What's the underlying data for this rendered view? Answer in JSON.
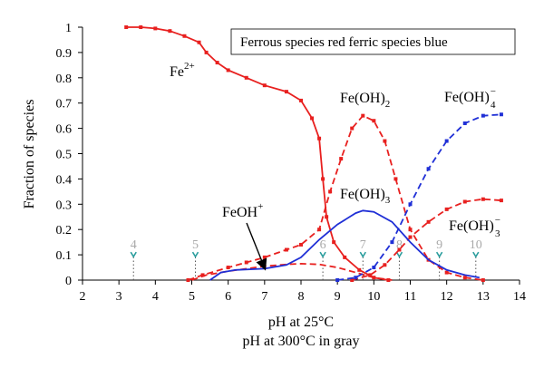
{
  "chart_data": {
    "type": "line",
    "title": "",
    "xlabel": "pH at 25°C",
    "xlabel2": "pH at 300°C in gray",
    "ylabel": "Fraction of species",
    "xlim": [
      2,
      14
    ],
    "ylim": [
      0,
      1
    ],
    "xticks": [
      "2",
      "3",
      "4",
      "5",
      "6",
      "7",
      "8",
      "9",
      "10",
      "11",
      "12",
      "13",
      "14"
    ],
    "yticks": [
      "0",
      "0.1",
      "0.2",
      "0.3",
      "0.4",
      "0.5",
      "0.6",
      "0.7",
      "0.8",
      "0.9",
      "1"
    ],
    "grid": false,
    "legend_note": "Ferrous species red ferric species blue",
    "colors": {
      "ferrous": "#e8201f",
      "ferric": "#1f2fd6",
      "gray_ph": "#a9a9a9"
    },
    "series": [
      {
        "name": "Fe2+",
        "color": "#e8201f",
        "style": "solid-with-markers",
        "points": [
          [
            3.2,
            1.0
          ],
          [
            3.6,
            1.0
          ],
          [
            4.0,
            0.995
          ],
          [
            4.4,
            0.985
          ],
          [
            4.8,
            0.965
          ],
          [
            5.2,
            0.94
          ],
          [
            5.4,
            0.9
          ],
          [
            5.7,
            0.86
          ],
          [
            6.0,
            0.83
          ],
          [
            6.5,
            0.8
          ],
          [
            7.0,
            0.77
          ],
          [
            7.6,
            0.745
          ],
          [
            8.0,
            0.71
          ],
          [
            8.3,
            0.64
          ],
          [
            8.5,
            0.56
          ],
          [
            8.6,
            0.4
          ],
          [
            8.7,
            0.25
          ],
          [
            8.9,
            0.15
          ],
          [
            9.2,
            0.09
          ],
          [
            9.6,
            0.04
          ],
          [
            10.0,
            0.01
          ],
          [
            10.4,
            0.0
          ]
        ]
      },
      {
        "name": "FeOH+",
        "color": "#e8201f",
        "style": "dashed",
        "points": [
          [
            5.0,
            0.0
          ],
          [
            5.4,
            0.02
          ],
          [
            6.0,
            0.035
          ],
          [
            6.5,
            0.045
          ],
          [
            7.0,
            0.055
          ],
          [
            7.6,
            0.062
          ],
          [
            8.0,
            0.065
          ],
          [
            8.5,
            0.062
          ],
          [
            9.0,
            0.05
          ],
          [
            9.5,
            0.03
          ],
          [
            10.0,
            0.01
          ],
          [
            10.5,
            0.0
          ]
        ]
      },
      {
        "name": "Fe(OH)2",
        "color": "#e8201f",
        "style": "dashed-with-markers",
        "points": [
          [
            4.9,
            0.0
          ],
          [
            5.3,
            0.02
          ],
          [
            6.0,
            0.05
          ],
          [
            6.5,
            0.07
          ],
          [
            7.0,
            0.09
          ],
          [
            7.6,
            0.12
          ],
          [
            8.0,
            0.14
          ],
          [
            8.5,
            0.2
          ],
          [
            8.8,
            0.35
          ],
          [
            9.1,
            0.48
          ],
          [
            9.4,
            0.6
          ],
          [
            9.7,
            0.65
          ],
          [
            10.0,
            0.63
          ],
          [
            10.3,
            0.55
          ],
          [
            10.6,
            0.4
          ],
          [
            11.0,
            0.2
          ],
          [
            11.5,
            0.08
          ],
          [
            12.0,
            0.03
          ],
          [
            12.5,
            0.01
          ],
          [
            13.0,
            0.0
          ]
        ]
      },
      {
        "name": "Fe(OH)3 ferrous",
        "color": "#e8201f",
        "style": "dashed-with-markers",
        "points": [
          [
            9.4,
            0.0
          ],
          [
            9.9,
            0.02
          ],
          [
            10.3,
            0.06
          ],
          [
            10.7,
            0.12
          ],
          [
            11.0,
            0.17
          ],
          [
            11.5,
            0.23
          ],
          [
            12.0,
            0.28
          ],
          [
            12.5,
            0.31
          ],
          [
            13.0,
            0.32
          ],
          [
            13.5,
            0.315
          ]
        ]
      },
      {
        "name": "Fe(OH)3 ferric",
        "color": "#1f2fd6",
        "style": "solid",
        "points": [
          [
            5.5,
            0.0
          ],
          [
            5.8,
            0.03
          ],
          [
            6.2,
            0.04
          ],
          [
            7.0,
            0.045
          ],
          [
            7.6,
            0.06
          ],
          [
            8.0,
            0.09
          ],
          [
            8.5,
            0.16
          ],
          [
            9.0,
            0.22
          ],
          [
            9.5,
            0.265
          ],
          [
            9.7,
            0.275
          ],
          [
            10.0,
            0.27
          ],
          [
            10.5,
            0.23
          ],
          [
            11.0,
            0.15
          ],
          [
            11.5,
            0.08
          ],
          [
            12.0,
            0.04
          ],
          [
            12.5,
            0.02
          ],
          [
            12.9,
            0.01
          ]
        ]
      },
      {
        "name": "Fe(OH)4-",
        "color": "#1f2fd6",
        "style": "dashed-with-markers",
        "points": [
          [
            9.0,
            0.0
          ],
          [
            9.5,
            0.01
          ],
          [
            10.0,
            0.05
          ],
          [
            10.5,
            0.15
          ],
          [
            11.0,
            0.3
          ],
          [
            11.5,
            0.44
          ],
          [
            12.0,
            0.55
          ],
          [
            12.5,
            0.62
          ],
          [
            13.0,
            0.65
          ],
          [
            13.5,
            0.655
          ]
        ]
      }
    ],
    "labels": {
      "fe2": {
        "base": "Fe",
        "sup": "2+"
      },
      "feoh": {
        "base": "FeOH",
        "sup": "+"
      },
      "feoh2": {
        "base": "Fe(OH)",
        "sub": "2"
      },
      "feoh3": {
        "base": "Fe(OH)",
        "sub": "3"
      },
      "feoh4": {
        "base": "Fe(OH)",
        "sub": "4",
        "sup": "−"
      },
      "feoh3m": {
        "base": "Fe(OH)",
        "sub": "3",
        "sup": "−"
      }
    },
    "gray_ph_markers": [
      {
        "label": "4",
        "x": 3.4
      },
      {
        "label": "5",
        "x": 5.1
      },
      {
        "label": "6",
        "x": 8.6
      },
      {
        "label": "7",
        "x": 9.7
      },
      {
        "label": "8",
        "x": 10.7
      },
      {
        "label": "9",
        "x": 11.8
      },
      {
        "label": "10",
        "x": 12.8
      }
    ]
  }
}
